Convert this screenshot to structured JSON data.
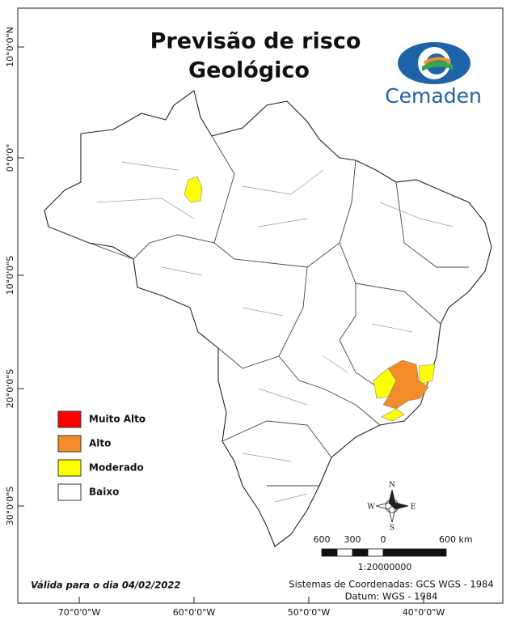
{
  "title": [
    "Previsão de risco",
    "Geológico"
  ],
  "logo": "Cemaden",
  "legend": [
    "Muito Alto",
    "Alto",
    "Moderado",
    "Baixo"
  ],
  "lat_labels": [
    "10°0'0\"N",
    "0°0'0\"",
    "10°0'0\"S",
    "20°0'0\"S",
    "30°0'0\"S"
  ],
  "lon_labels": [
    "70°0'0\"W",
    "60°0'0\"W",
    "50°0'0\"W",
    "40°0'0\"W"
  ],
  "compass": {
    "n": "N",
    "s": "S",
    "e": "E",
    "w": "W"
  },
  "scale_bar": {
    "labels": [
      "600",
      "300",
      "0",
      "600 km"
    ],
    "ratio": "1:20000000"
  },
  "footer": {
    "valid": "Válida para o dia 04/02/2022",
    "crs": "Sistemas de Coordenadas: GCS WGS - 1984",
    "datum": "Datum: WGS - 1984"
  }
}
